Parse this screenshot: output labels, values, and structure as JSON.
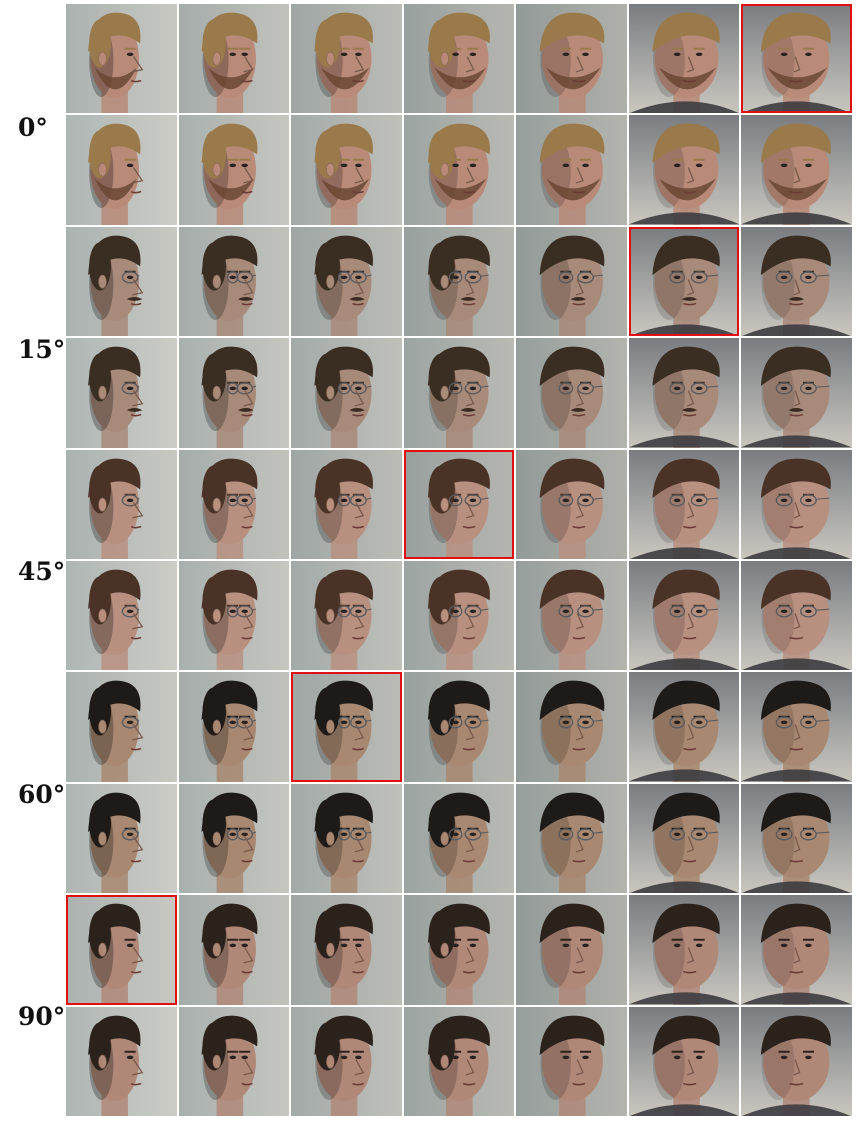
{
  "row_groups": [
    {
      "label": "0°"
    },
    {
      "label": "15°"
    },
    {
      "label": "45°"
    },
    {
      "label": "60°"
    },
    {
      "label": "90°"
    }
  ],
  "grid": {
    "columns": 7,
    "rows": 10,
    "highlight_color": "#e01010",
    "highlighted_cells": [
      {
        "row": 0,
        "col": 6
      },
      {
        "row": 2,
        "col": 5
      },
      {
        "row": 4,
        "col": 3
      },
      {
        "row": 6,
        "col": 2
      },
      {
        "row": 8,
        "col": 0
      }
    ],
    "subjects": [
      {
        "group": 0,
        "hair": "#9a7a4a",
        "skin": "#b98a78",
        "beard": "#6a4632",
        "glasses": false
      },
      {
        "group": 1,
        "hair": "#3a2d22",
        "skin": "#a88a7a",
        "beard": null,
        "glasses": true
      },
      {
        "group": 2,
        "hair": "#4a3326",
        "skin": "#b89080",
        "beard": null,
        "glasses": true
      },
      {
        "group": 3,
        "hair": "#1e1a18",
        "skin": "#a88870",
        "beard": null,
        "glasses": true
      },
      {
        "group": 4,
        "hair": "#2c221c",
        "skin": "#b08878",
        "beard": null,
        "glasses": false
      }
    ],
    "column_poses": [
      "profile",
      "far-side",
      "side",
      "three-quarter",
      "near-side",
      "slight",
      "frontal"
    ]
  }
}
